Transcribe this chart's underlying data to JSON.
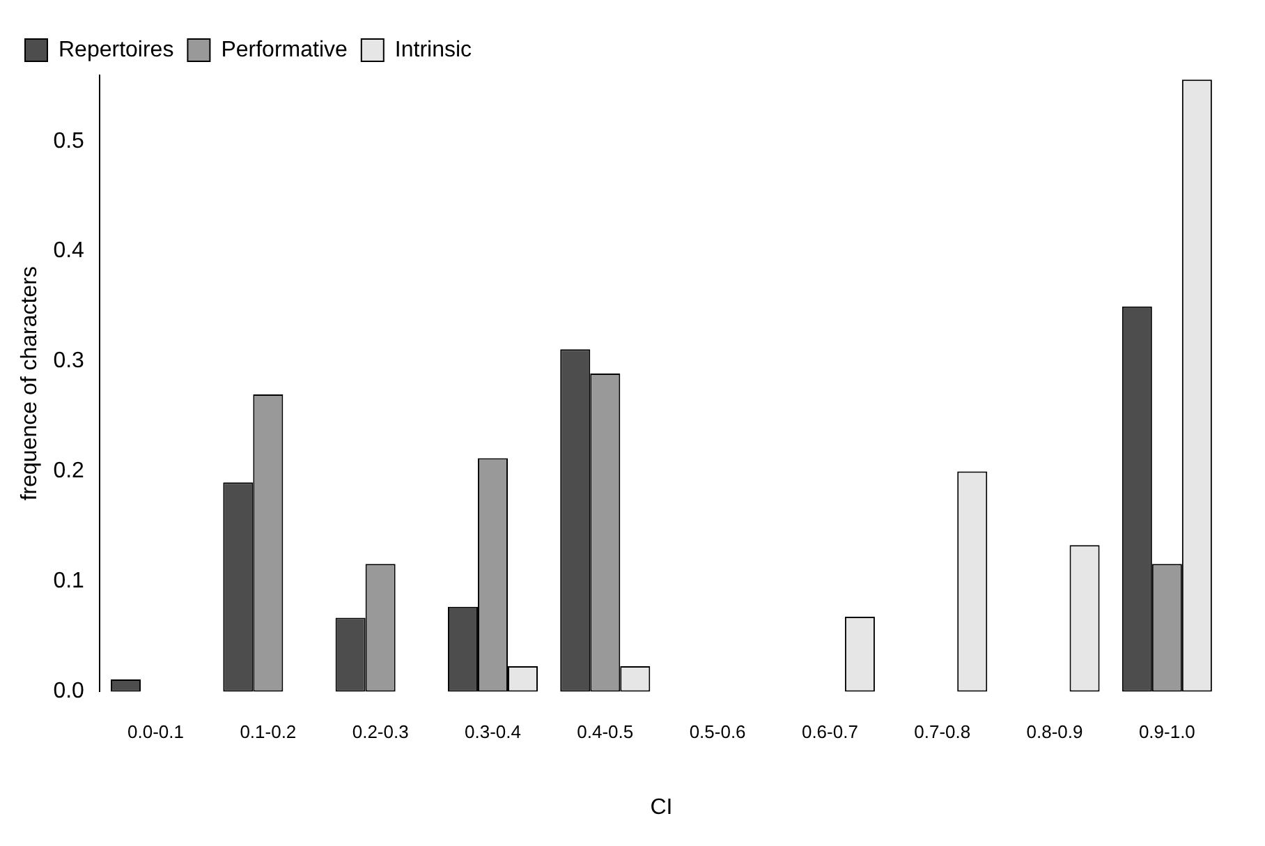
{
  "chart_data": {
    "type": "bar",
    "xlabel": "CI",
    "ylabel": "frequence of characters",
    "categories": [
      "0.0-0.1",
      "0.1-0.2",
      "0.2-0.3",
      "0.3-0.4",
      "0.4-0.5",
      "0.5-0.6",
      "0.6-0.7",
      "0.7-0.8",
      "0.8-0.9",
      "0.9-1.0"
    ],
    "series": [
      {
        "name": "Repertoires",
        "color": "#4d4d4d",
        "values": [
          0.011,
          0.19,
          0.067,
          0.077,
          0.311,
          0,
          0,
          0,
          0,
          0.35
        ]
      },
      {
        "name": "Performative",
        "color": "#999999",
        "values": [
          0,
          0.27,
          0.116,
          0.212,
          0.289,
          0,
          0,
          0,
          0,
          0.116
        ]
      },
      {
        "name": "Intrinsic",
        "color": "#e6e6e6",
        "values": [
          0,
          0,
          0,
          0.023,
          0.023,
          0,
          0.068,
          0.2,
          0.133,
          0.556
        ]
      }
    ],
    "ylim": [
      0,
      0.56
    ],
    "yticks": [
      {
        "value": 0,
        "label": "0.0"
      },
      0.1,
      0.2,
      0.3,
      0.4,
      0.5
    ],
    "grid": false,
    "legend": "top left"
  }
}
